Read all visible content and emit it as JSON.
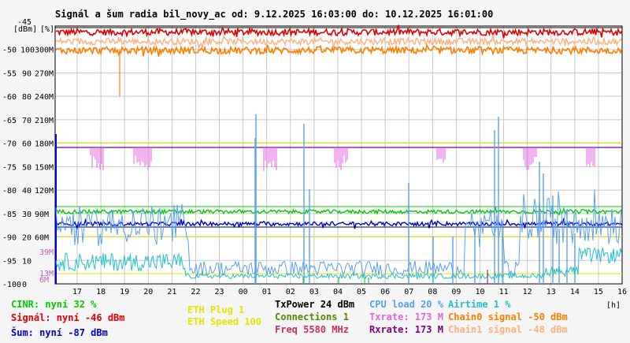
{
  "title": "Signál a šum radia bil_novy_ac od: 9.12.2025 16:03:00 do: 10.12.2025 16:01:00",
  "chart_data": {
    "type": "line",
    "title": "Signál a šum radia bil_novy_ac od: 9.12.2025 16:03:00 do: 10.12.2025 16:01:00",
    "xlabel": "[h]",
    "unit_labels": [
      "[dBm]",
      "[%]"
    ],
    "x_ticks": [
      "17",
      "18",
      "19",
      "20",
      "21",
      "22",
      "23",
      "00",
      "01",
      "02",
      "03",
      "04",
      "05",
      "06",
      "07",
      "08",
      "09",
      "10",
      "11",
      "12",
      "13",
      "14",
      "15",
      "16"
    ],
    "y_ticks_dbm": [
      "-45",
      "-50",
      "-55",
      "-60",
      "-65",
      "-70",
      "-75",
      "-80",
      "-85",
      "-90",
      "-95",
      "-100"
    ],
    "y_ticks_pct": [
      "100",
      "90",
      "80",
      "70",
      "60",
      "50",
      "40",
      "30",
      "20",
      "10",
      "0"
    ],
    "y_ticks_rate": [
      "300M",
      "270M",
      "240M",
      "210M",
      "180M",
      "150M",
      "120M",
      "90M",
      "60M"
    ],
    "inner_labels": [
      "39M",
      "13M",
      "6M"
    ],
    "ylim_dbm": [
      -100,
      -45
    ],
    "ylim_pct": [
      0,
      100
    ],
    "grid": true,
    "series": [
      {
        "name": "Signál",
        "color": "#e00000",
        "typical": -46
      },
      {
        "name": "Chain0 signal",
        "color": "#ff7f00",
        "typical": -50
      },
      {
        "name": "Chain1 signal",
        "color": "#ffb07f",
        "typical": -48
      },
      {
        "name": "Šum",
        "color": "#0000c8",
        "typical": -87
      },
      {
        "name": "CINR",
        "color": "#00cc00",
        "typical": 32
      },
      {
        "name": "Rxrate",
        "color": "#800080",
        "typical": 173
      },
      {
        "name": "Txrate",
        "color": "#e066e0",
        "typical": 173
      },
      {
        "name": "CPU load",
        "color": "#5aa0f0",
        "typical": 20
      },
      {
        "name": "Airtime",
        "color": "#20c0d0",
        "typical": 1
      }
    ]
  },
  "legend": {
    "cinr": "CINR: nyní 32 %",
    "signal": "Signál: nyní -46 dBm",
    "noise": "Šum: nyní -87 dBm",
    "eth_plug": "ETH Plug 1",
    "eth_speed": "ETH Speed 100",
    "txpower": "TxPower 24 dBm",
    "connections": "Connections 1",
    "freq": "Freq 5580 MHz",
    "cpu": "CPU load 20 %",
    "txrate": "Txrate: 173 M",
    "rxrate": "Rxrate: 173 M",
    "airtime": "Airtime 1 %",
    "chain0": "Chain0 signal -50 dBm",
    "chain1": "Chain1 signal -48 dBm"
  },
  "colors": {
    "background": "#f5f5f5",
    "plot": "#ffffff",
    "grid": "#c8c8c8",
    "signal": "#e00000",
    "chain0": "#ff7f00",
    "chain1": "#ffb07f",
    "noise": "#0000c8",
    "cinr": "#00cc00",
    "rxrate": "#800080",
    "txrate": "#e066e0",
    "cpu": "#5aa0f0",
    "airtime": "#20c0d0",
    "eth": "#e6e600",
    "connections": "#558800",
    "freq": "#c83060"
  }
}
